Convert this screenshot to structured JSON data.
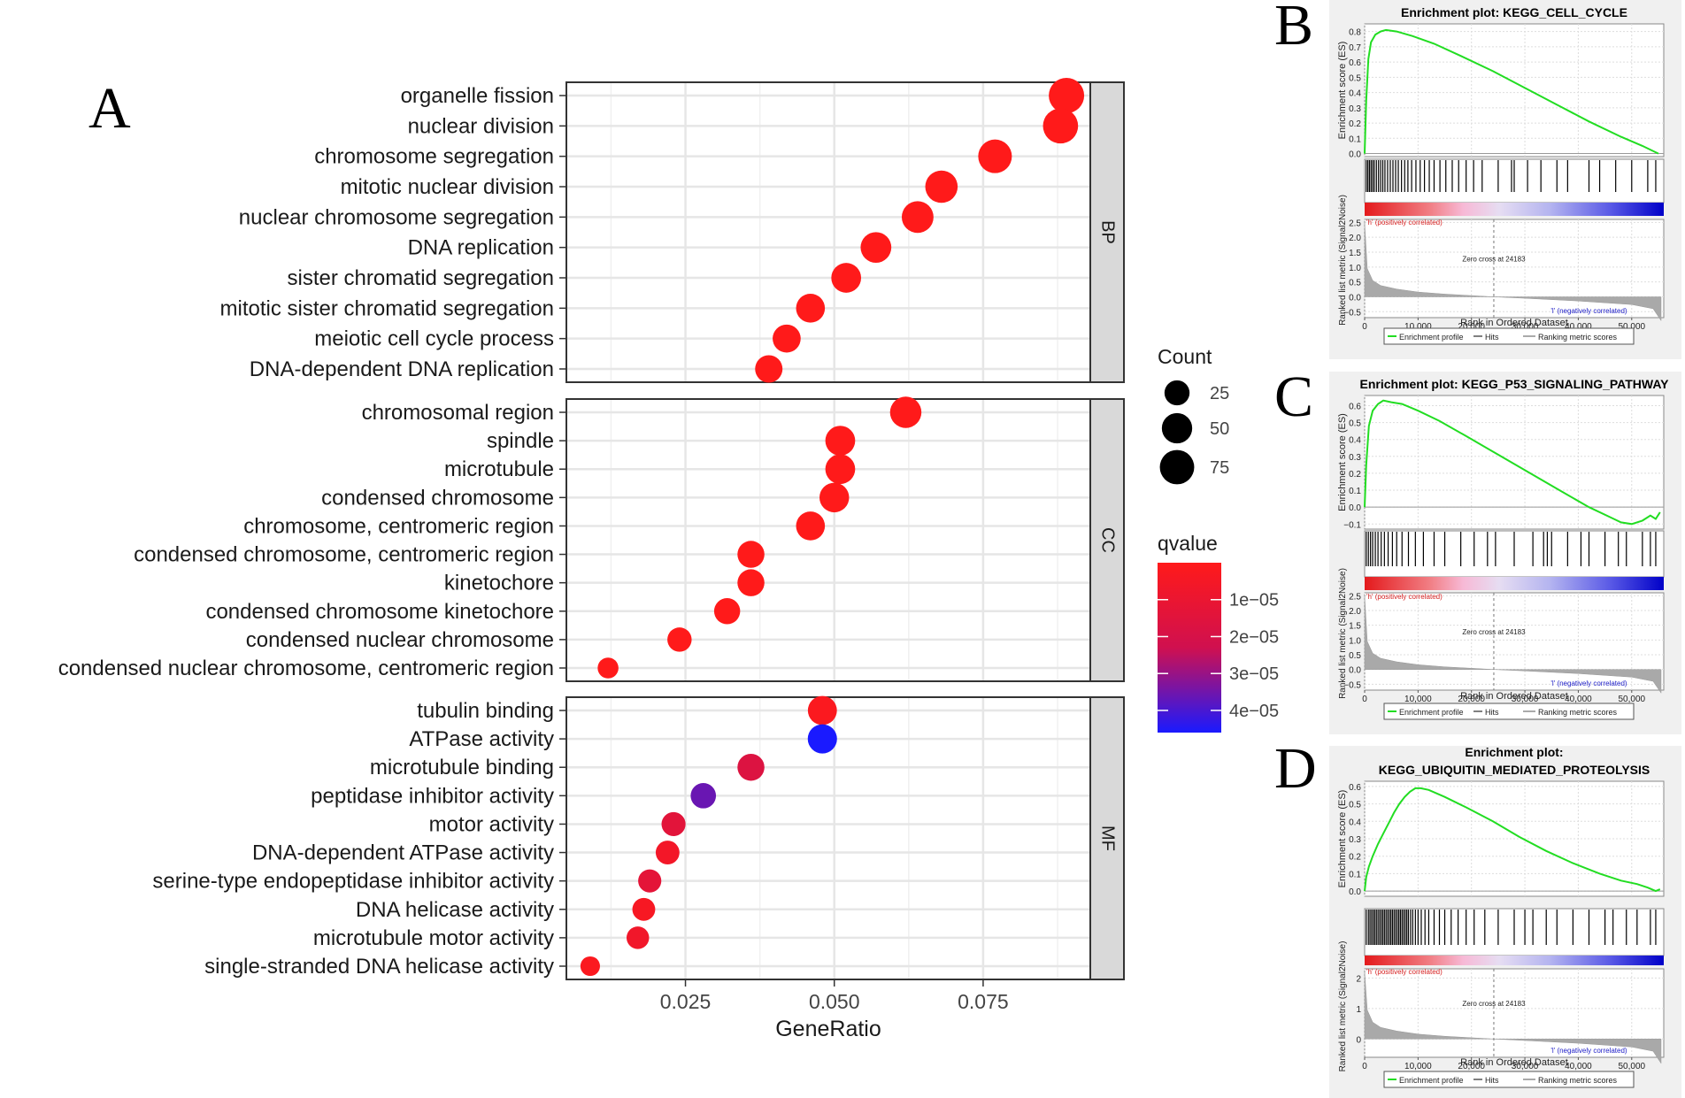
{
  "panel_labels": {
    "a": "A",
    "b": "B",
    "c": "C",
    "d": "D"
  },
  "chart_data": [
    {
      "type": "scatter",
      "subtype": "dot-plot",
      "panel": "A",
      "xlabel": "GeneRatio",
      "xlim": [
        0.005,
        0.093
      ],
      "xticks": [
        0.025,
        0.05,
        0.075
      ],
      "xtick_labels": [
        "0.025",
        "0.050",
        "0.075"
      ],
      "grid": true,
      "legend_position": "right",
      "size_legend": {
        "title": "Count",
        "values": [
          25,
          50,
          75
        ],
        "labels": [
          "25",
          "50",
          "75"
        ]
      },
      "color_legend": {
        "title": "qvalue",
        "range": [
          0,
          4.6e-05
        ],
        "ticks": [
          1e-05,
          2e-05,
          3e-05,
          4e-05
        ],
        "labels": [
          "1e−05",
          "2e−05",
          "3e−05",
          "4e−05"
        ],
        "colors": [
          "#ff1a1a",
          "#1a1aff"
        ]
      },
      "facets": [
        {
          "name": "BP",
          "terms": [
            {
              "label": "organelle fission",
              "gene_ratio": 0.089,
              "count": 82,
              "qvalue": 1e-08
            },
            {
              "label": "nuclear division",
              "gene_ratio": 0.088,
              "count": 80,
              "qvalue": 1e-08
            },
            {
              "label": "chromosome segregation",
              "gene_ratio": 0.077,
              "count": 70,
              "qvalue": 1e-08
            },
            {
              "label": "mitotic nuclear division",
              "gene_ratio": 0.068,
              "count": 62,
              "qvalue": 1e-08
            },
            {
              "label": "nuclear chromosome segregation",
              "gene_ratio": 0.064,
              "count": 58,
              "qvalue": 1e-08
            },
            {
              "label": "DNA replication",
              "gene_ratio": 0.057,
              "count": 52,
              "qvalue": 1e-08
            },
            {
              "label": "sister chromatid segregation",
              "gene_ratio": 0.052,
              "count": 47,
              "qvalue": 1e-08
            },
            {
              "label": "mitotic sister chromatid segregation",
              "gene_ratio": 0.046,
              "count": 42,
              "qvalue": 1e-08
            },
            {
              "label": "meiotic cell cycle process",
              "gene_ratio": 0.042,
              "count": 38,
              "qvalue": 1e-08
            },
            {
              "label": "DNA-dependent DNA replication",
              "gene_ratio": 0.039,
              "count": 35,
              "qvalue": 1e-08
            }
          ]
        },
        {
          "name": "CC",
          "terms": [
            {
              "label": "chromosomal region",
              "gene_ratio": 0.062,
              "count": 56,
              "qvalue": 1e-08
            },
            {
              "label": "spindle",
              "gene_ratio": 0.051,
              "count": 47,
              "qvalue": 1e-08
            },
            {
              "label": "microtubule",
              "gene_ratio": 0.051,
              "count": 47,
              "qvalue": 1e-08
            },
            {
              "label": "condensed chromosome",
              "gene_ratio": 0.05,
              "count": 46,
              "qvalue": 1e-08
            },
            {
              "label": "chromosome, centromeric region",
              "gene_ratio": 0.046,
              "count": 42,
              "qvalue": 1e-08
            },
            {
              "label": "condensed chromosome, centromeric region",
              "gene_ratio": 0.036,
              "count": 33,
              "qvalue": 1e-08
            },
            {
              "label": "kinetochore",
              "gene_ratio": 0.036,
              "count": 33,
              "qvalue": 1e-08
            },
            {
              "label": "condensed chromosome kinetochore",
              "gene_ratio": 0.032,
              "count": 29,
              "qvalue": 1e-08
            },
            {
              "label": "condensed nuclear chromosome",
              "gene_ratio": 0.024,
              "count": 22,
              "qvalue": 1e-08
            },
            {
              "label": "condensed nuclear chromosome, centromeric region",
              "gene_ratio": 0.012,
              "count": 11,
              "qvalue": 1e-08
            }
          ]
        },
        {
          "name": "MF",
          "terms": [
            {
              "label": "tubulin binding",
              "gene_ratio": 0.048,
              "count": 43,
              "qvalue": 2e-06
            },
            {
              "label": "ATPase activity",
              "gene_ratio": 0.048,
              "count": 44,
              "qvalue": 4.6e-05
            },
            {
              "label": "microtubule binding",
              "gene_ratio": 0.036,
              "count": 33,
              "qvalue": 1.7e-05
            },
            {
              "label": "peptidase inhibitor activity",
              "gene_ratio": 0.028,
              "count": 26,
              "qvalue": 3.6e-05
            },
            {
              "label": "motor activity",
              "gene_ratio": 0.023,
              "count": 21,
              "qvalue": 1.4e-05
            },
            {
              "label": "DNA-dependent ATPase activity",
              "gene_ratio": 0.022,
              "count": 20,
              "qvalue": 6e-06
            },
            {
              "label": "serine-type endopeptidase inhibitor activity",
              "gene_ratio": 0.019,
              "count": 18,
              "qvalue": 1.3e-05
            },
            {
              "label": "DNA helicase activity",
              "gene_ratio": 0.018,
              "count": 17,
              "qvalue": 4e-06
            },
            {
              "label": "microtubule motor activity",
              "gene_ratio": 0.017,
              "count": 16,
              "qvalue": 7e-06
            },
            {
              "label": "single-stranded DNA helicase activity",
              "gene_ratio": 0.009,
              "count": 8,
              "qvalue": 2e-06
            }
          ]
        }
      ]
    },
    {
      "type": "line",
      "subtype": "gsea-enrichment-plot",
      "panel": "B",
      "title_lines": [
        "Enrichment plot: KEGG_CELL_CYCLE"
      ],
      "ylabel_top": "Enrichment score (ES)",
      "ylabel_bottom": "Ranked list metric (Signal2Noise)",
      "xlabel": "Rank in Ordered Dataset",
      "xlim": [
        0,
        56000
      ],
      "xticks": [
        0,
        10000,
        20000,
        30000,
        40000,
        50000
      ],
      "xtick_labels": [
        "0",
        "10,000",
        "20,000",
        "30,000",
        "40,000",
        "50,000"
      ],
      "es_ylim": [
        -0.02,
        0.85
      ],
      "es_ticks": [
        0.0,
        0.1,
        0.2,
        0.3,
        0.4,
        0.5,
        0.6,
        0.7,
        0.8
      ],
      "es_tick_labels": [
        "0.0",
        "0.1",
        "0.2",
        "0.3",
        "0.4",
        "0.5",
        "0.6",
        "0.7",
        "0.8"
      ],
      "es_curve": {
        "x": [
          0,
          300,
          700,
          1200,
          2000,
          3000,
          4000,
          6000,
          9000,
          13000,
          18000,
          24000,
          30000,
          36000,
          42000,
          48000,
          52000,
          55000
        ],
        "y": [
          0.0,
          0.35,
          0.62,
          0.73,
          0.78,
          0.8,
          0.81,
          0.8,
          0.77,
          0.72,
          0.64,
          0.54,
          0.43,
          0.32,
          0.21,
          0.11,
          0.05,
          0.0
        ]
      },
      "hits": [
        300,
        600,
        900,
        1200,
        1500,
        1800,
        2200,
        2600,
        3000,
        3400,
        3800,
        4300,
        4800,
        5300,
        5800,
        6300,
        6900,
        7500,
        8100,
        8800,
        9600,
        10400,
        11200,
        12100,
        13000,
        14100,
        15200,
        16400,
        17600,
        19000,
        20400,
        22000,
        25000,
        27500,
        28000,
        30500,
        33000,
        36000,
        38000,
        42000,
        44000,
        47000,
        50000,
        53000,
        54500
      ],
      "metric": {
        "x": [
          0,
          500,
          1500,
          3000,
          6000,
          10000,
          15000,
          20000,
          24183,
          30000,
          40000,
          50000,
          54000,
          55500
        ],
        "y": [
          2.5,
          0.95,
          0.55,
          0.38,
          0.26,
          0.16,
          0.09,
          0.04,
          0.0,
          -0.05,
          -0.14,
          -0.26,
          -0.4,
          -0.8
        ],
        "ylim": [
          -0.7,
          2.6
        ],
        "ticks": [
          -0.5,
          0.0,
          0.5,
          1.0,
          1.5,
          2.0,
          2.5
        ],
        "tick_labels": [
          "−0.5",
          "0.0",
          "0.5",
          "1.0",
          "1.5",
          "2.0",
          "2.5"
        ]
      },
      "annotations": {
        "pos": "'h' (positively correlated)",
        "neg": "'l' (negatively correlated)",
        "zero": "Zero cross at 24183"
      },
      "zero_cross": 24183,
      "legend": [
        "Enrichment profile",
        "Hits",
        "Ranking metric scores"
      ]
    },
    {
      "type": "line",
      "subtype": "gsea-enrichment-plot",
      "panel": "C",
      "title_lines": [
        "Enrichment plot: KEGG_P53_SIGNALING_PATHWAY"
      ],
      "ylabel_top": "Enrichment score (ES)",
      "ylabel_bottom": "Ranked list metric (Signal2Noise)",
      "xlabel": "Rank in Ordered Dataset",
      "xlim": [
        0,
        56000
      ],
      "xticks": [
        0,
        10000,
        20000,
        30000,
        40000,
        50000
      ],
      "xtick_labels": [
        "0",
        "10,000",
        "20,000",
        "30,000",
        "40,000",
        "50,000"
      ],
      "es_ylim": [
        -0.13,
        0.66
      ],
      "es_ticks": [
        -0.1,
        0.0,
        0.1,
        0.2,
        0.3,
        0.4,
        0.5,
        0.6
      ],
      "es_tick_labels": [
        "−0.1",
        "0.0",
        "0.1",
        "0.2",
        "0.3",
        "0.4",
        "0.5",
        "0.6"
      ],
      "es_curve": {
        "x": [
          0,
          300,
          800,
          1500,
          2500,
          3500,
          5000,
          7000,
          10000,
          14000,
          19000,
          25000,
          31000,
          37000,
          42000,
          46000,
          48000,
          50000,
          52000,
          53500,
          54500,
          55300
        ],
        "y": [
          0.0,
          0.25,
          0.48,
          0.57,
          0.61,
          0.63,
          0.62,
          0.61,
          0.57,
          0.51,
          0.42,
          0.31,
          0.2,
          0.09,
          0.0,
          -0.06,
          -0.09,
          -0.1,
          -0.08,
          -0.05,
          -0.07,
          -0.03
        ]
      },
      "hits": [
        300,
        700,
        1100,
        1500,
        2000,
        2500,
        3100,
        3700,
        4400,
        5200,
        6000,
        7000,
        8200,
        9500,
        11000,
        13000,
        15000,
        18000,
        20500,
        23000,
        24500,
        28000,
        31500,
        33500,
        34200,
        35000,
        38000,
        40500,
        42000,
        45000,
        47500,
        49000,
        52000,
        53500,
        54500
      ],
      "metric": {
        "x": [
          0,
          500,
          1500,
          3000,
          6000,
          10000,
          15000,
          20000,
          24183,
          30000,
          40000,
          50000,
          54000,
          55500
        ],
        "y": [
          2.5,
          0.95,
          0.55,
          0.38,
          0.26,
          0.16,
          0.09,
          0.04,
          0.0,
          -0.05,
          -0.14,
          -0.26,
          -0.4,
          -0.8
        ],
        "ylim": [
          -0.7,
          2.6
        ],
        "ticks": [
          -0.5,
          0.0,
          0.5,
          1.0,
          1.5,
          2.0,
          2.5
        ],
        "tick_labels": [
          "−0.5",
          "0.0",
          "0.5",
          "1.0",
          "1.5",
          "2.0",
          "2.5"
        ]
      },
      "annotations": {
        "pos": "'h' (positively correlated)",
        "neg": "'l' (negatively correlated)",
        "zero": "Zero cross at 24183"
      },
      "zero_cross": 24183,
      "legend": [
        "Enrichment profile",
        "Hits",
        "Ranking metric scores"
      ]
    },
    {
      "type": "line",
      "subtype": "gsea-enrichment-plot",
      "panel": "D",
      "title_lines": [
        "Enrichment plot:",
        "KEGG_UBIQUITIN_MEDIATED_PROTEOLYSIS"
      ],
      "ylabel_top": "Enrichment score (ES)",
      "ylabel_bottom": "Ranked list metric (Signal2Noise)",
      "xlabel": "Rank in Ordered Dataset",
      "xlim": [
        0,
        56000
      ],
      "xticks": [
        0,
        10000,
        20000,
        30000,
        40000,
        50000
      ],
      "xtick_labels": [
        "0",
        "10,000",
        "20,000",
        "30,000",
        "40,000",
        "50,000"
      ],
      "es_ylim": [
        -0.03,
        0.63
      ],
      "es_ticks": [
        0.0,
        0.1,
        0.2,
        0.3,
        0.4,
        0.5,
        0.6
      ],
      "es_tick_labels": [
        "0.0",
        "0.1",
        "0.2",
        "0.3",
        "0.4",
        "0.5",
        "0.6"
      ],
      "es_curve": {
        "x": [
          0,
          300,
          800,
          1500,
          2500,
          3500,
          4500,
          5500,
          6500,
          7500,
          8500,
          9500,
          10500,
          12000,
          15000,
          19000,
          24000,
          29000,
          34000,
          39000,
          44000,
          48000,
          51000,
          53000,
          54500,
          55300
        ],
        "y": [
          0.0,
          0.08,
          0.14,
          0.2,
          0.27,
          0.33,
          0.39,
          0.45,
          0.5,
          0.54,
          0.57,
          0.59,
          0.59,
          0.58,
          0.54,
          0.48,
          0.4,
          0.31,
          0.23,
          0.16,
          0.1,
          0.06,
          0.04,
          0.02,
          0.0,
          0.01
        ]
      },
      "hits": [
        300,
        700,
        1000,
        1300,
        1600,
        1900,
        2200,
        2500,
        2800,
        3100,
        3400,
        3700,
        4000,
        4300,
        4600,
        4900,
        5200,
        5500,
        5800,
        6100,
        6400,
        6700,
        7000,
        7300,
        7600,
        7900,
        8200,
        8600,
        9000,
        9500,
        10000,
        10600,
        11300,
        12000,
        13000,
        14000,
        15000,
        16200,
        17500,
        19000,
        20500,
        22500,
        25000,
        28000,
        30000,
        31500,
        34000,
        36000,
        39000,
        42000,
        45000,
        46500,
        49000,
        51000,
        53500,
        54500
      ],
      "metric": {
        "x": [
          0,
          500,
          1500,
          3000,
          6000,
          10000,
          15000,
          20000,
          24183,
          30000,
          40000,
          50000,
          54000,
          55500
        ],
        "y": [
          2.2,
          0.95,
          0.55,
          0.38,
          0.26,
          0.16,
          0.09,
          0.04,
          0.0,
          -0.05,
          -0.14,
          -0.26,
          -0.4,
          -0.8
        ],
        "ylim": [
          -0.6,
          2.3
        ],
        "ticks": [
          0,
          1,
          2
        ],
        "tick_labels": [
          "0",
          "1",
          "2"
        ]
      },
      "annotations": {
        "pos": "'h' (positively correlated)",
        "neg": "'l' (negatively correlated)",
        "zero": "Zero cross at 24183"
      },
      "zero_cross": 24183,
      "legend": [
        "Enrichment profile",
        "Hits",
        "Ranking metric scores"
      ]
    }
  ]
}
